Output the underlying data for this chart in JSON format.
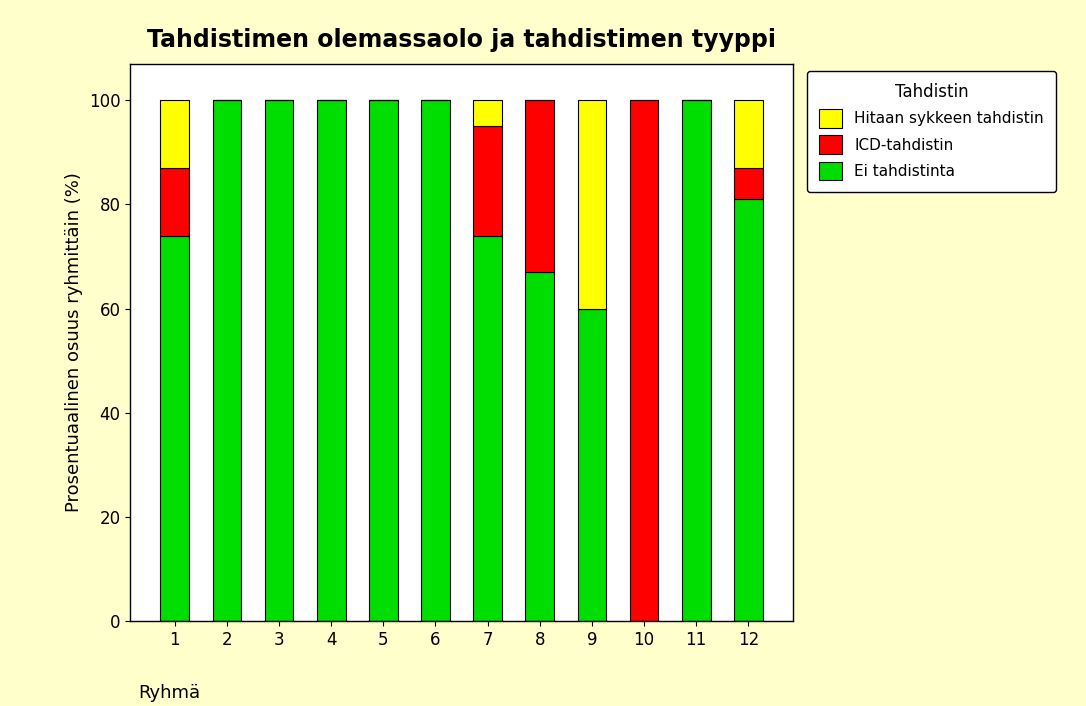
{
  "title": "Tahdistimen olemassaolo ja tahdistimen tyyppi",
  "xlabel": "Ryhmä",
  "ylabel": "Prosentuaalinen osuus ryhmittäin (%)",
  "categories": [
    "1",
    "2",
    "3",
    "4",
    "5",
    "6",
    "7",
    "8",
    "9",
    "10",
    "11",
    "12"
  ],
  "green": [
    74,
    100,
    100,
    100,
    100,
    100,
    74,
    67,
    60,
    0,
    100,
    81
  ],
  "red": [
    13,
    0,
    0,
    0,
    0,
    0,
    21,
    33,
    0,
    100,
    0,
    6
  ],
  "yellow": [
    13,
    0,
    0,
    0,
    0,
    0,
    5,
    0,
    40,
    0,
    0,
    13
  ],
  "green_color": "#00DD00",
  "red_color": "#FF0000",
  "yellow_color": "#FFFF00",
  "legend_title": "Tahdistin",
  "legend_labels": [
    "Hitaan sykkeen tahdistin",
    "ICD-tahdistin",
    "Ei tahdistinta"
  ],
  "bg_color": "#FFFFCC",
  "plot_bg_color": "#FFFFFF",
  "ylim": [
    0,
    107
  ],
  "yticks": [
    0,
    20,
    40,
    60,
    80,
    100
  ],
  "title_fontsize": 17,
  "label_fontsize": 13,
  "tick_fontsize": 12,
  "bar_width": 0.55
}
